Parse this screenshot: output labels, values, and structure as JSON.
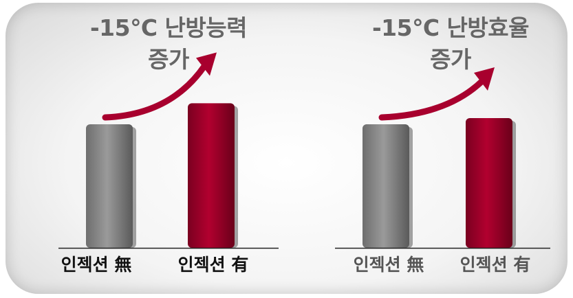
{
  "chart_data": [
    {
      "type": "bar",
      "title": "-15℃ 난방능력",
      "subtitle": "증가",
      "categories": [
        "인젝션 無",
        "인젝션 有"
      ],
      "values": [
        1.0,
        1.17
      ],
      "ylim": [
        0,
        1.25
      ],
      "xlabel": "",
      "ylabel": "",
      "grid": false
    },
    {
      "type": "bar",
      "title": "-15℃ 난방효율",
      "subtitle": "증가",
      "categories": [
        "인젝션 無",
        "인젝션 有"
      ],
      "values": [
        1.0,
        1.05
      ],
      "ylim": [
        0,
        1.25
      ],
      "xlabel": "",
      "ylabel": "",
      "grid": false
    }
  ],
  "colors": {
    "bar_base": "#8c8c8c",
    "bar_improved": "#a8002e",
    "arrow": "#a8002e",
    "title": "#666666",
    "label_left": "#111111",
    "label_right": "#555555"
  }
}
